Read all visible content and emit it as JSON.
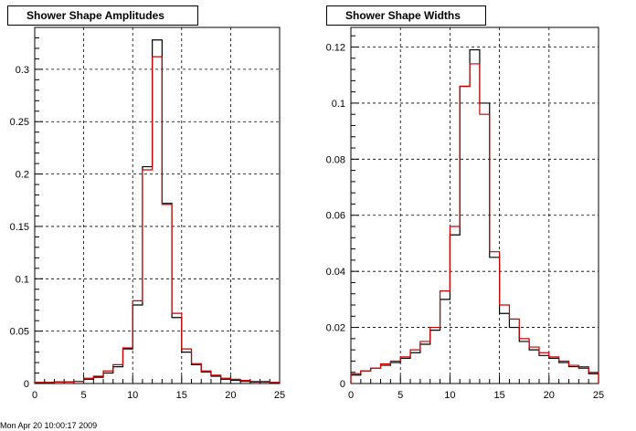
{
  "footer_text": "Mon Apr 20 10:00:17 2009",
  "chart_data": [
    {
      "type": "bar",
      "title": "Shower Shape Amplitudes",
      "xlabel": "",
      "ylabel": "",
      "xlim": [
        0,
        25
      ],
      "ylim": [
        0,
        0.34
      ],
      "grid": true,
      "x_ticks": [
        "0",
        "5",
        "10",
        "15",
        "20",
        "25"
      ],
      "y_ticks": [
        "0",
        "0.05",
        "0.1",
        "0.15",
        "0.2",
        "0.25",
        "0.3"
      ],
      "x_tick_values": [
        0,
        5,
        10,
        15,
        20,
        25
      ],
      "y_tick_values": [
        0,
        0.05,
        0.1,
        0.15,
        0.2,
        0.25,
        0.3
      ],
      "bin_edges_start": 0,
      "bin_width": 1,
      "series": [
        {
          "color": "#000000",
          "values": [
            0.001,
            0.001,
            0.0015,
            0.0015,
            0.002,
            0.004,
            0.006,
            0.01,
            0.016,
            0.033,
            0.075,
            0.207,
            0.328,
            0.172,
            0.063,
            0.03,
            0.018,
            0.011,
            0.007,
            0.004,
            0.003,
            0.002,
            0.0015,
            0.0015,
            0.001
          ]
        },
        {
          "color": "#cc0000",
          "values": [
            0.001,
            0.001,
            0.0015,
            0.0015,
            0.002,
            0.005,
            0.007,
            0.012,
            0.018,
            0.034,
            0.079,
            0.204,
            0.312,
            0.171,
            0.067,
            0.033,
            0.019,
            0.012,
            0.008,
            0.005,
            0.004,
            0.003,
            0.002,
            0.002,
            0.001
          ]
        }
      ]
    },
    {
      "type": "bar",
      "title": "Shower Shape Widths",
      "xlabel": "",
      "ylabel": "",
      "xlim": [
        0,
        25
      ],
      "ylim": [
        0,
        0.127
      ],
      "grid": true,
      "x_ticks": [
        "0",
        "5",
        "10",
        "15",
        "20",
        "25"
      ],
      "y_ticks": [
        "0",
        "0.02",
        "0.04",
        "0.06",
        "0.08",
        "0.1",
        "0.12"
      ],
      "x_tick_values": [
        0,
        5,
        10,
        15,
        20,
        25
      ],
      "y_tick_values": [
        0,
        0.02,
        0.04,
        0.06,
        0.08,
        0.1,
        0.12
      ],
      "bin_edges_start": 0,
      "bin_width": 1,
      "series": [
        {
          "color": "#000000",
          "values": [
            0.003,
            0.0045,
            0.0055,
            0.0065,
            0.0075,
            0.009,
            0.011,
            0.014,
            0.019,
            0.03,
            0.053,
            0.106,
            0.119,
            0.1,
            0.045,
            0.025,
            0.02,
            0.015,
            0.012,
            0.01,
            0.009,
            0.0075,
            0.006,
            0.0055,
            0.0035
          ]
        },
        {
          "color": "#cc0000",
          "values": [
            0.0035,
            0.0045,
            0.0055,
            0.007,
            0.008,
            0.0095,
            0.012,
            0.015,
            0.02,
            0.033,
            0.056,
            0.106,
            0.114,
            0.096,
            0.047,
            0.028,
            0.023,
            0.016,
            0.013,
            0.011,
            0.0095,
            0.008,
            0.0065,
            0.006,
            0.004
          ]
        }
      ]
    }
  ]
}
